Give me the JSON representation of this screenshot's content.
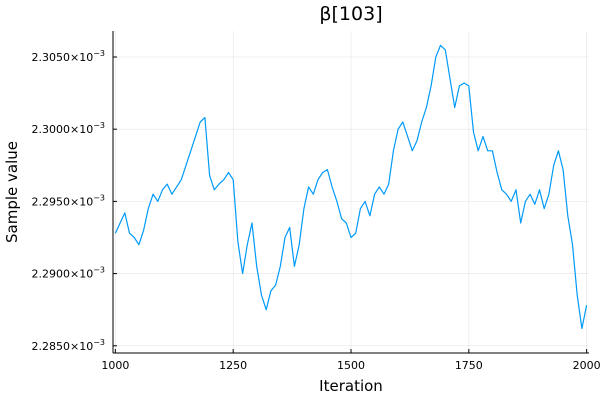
{
  "chart_data": {
    "type": "line",
    "title": "β[103]",
    "xlabel": "Iteration",
    "ylabel": "Sample value",
    "xlim": [
      995,
      2005
    ],
    "ylim": [
      0.0022845,
      0.0023068
    ],
    "grid": true,
    "legend": "none",
    "x_ticks": [
      {
        "value": 1000,
        "label": "1000"
      },
      {
        "value": 1250,
        "label": "1250"
      },
      {
        "value": 1500,
        "label": "1500"
      },
      {
        "value": 1750,
        "label": "1750"
      },
      {
        "value": 2000,
        "label": "2000"
      }
    ],
    "y_ticks": [
      {
        "value": 0.002285,
        "mantissa": "2.2850×10",
        "exponent": "−3"
      },
      {
        "value": 0.00229,
        "mantissa": "2.2900×10",
        "exponent": "−3"
      },
      {
        "value": 0.002295,
        "mantissa": "2.2950×10",
        "exponent": "−3"
      },
      {
        "value": 0.0023,
        "mantissa": "2.3000×10",
        "exponent": "−3"
      },
      {
        "value": 0.002305,
        "mantissa": "2.3050×10",
        "exponent": "−3"
      }
    ],
    "series": [
      {
        "color": "#009AF9",
        "x": [
          1000,
          1010,
          1020,
          1030,
          1040,
          1050,
          1060,
          1070,
          1080,
          1090,
          1100,
          1110,
          1120,
          1130,
          1140,
          1150,
          1160,
          1170,
          1180,
          1190,
          1200,
          1210,
          1220,
          1230,
          1240,
          1250,
          1260,
          1270,
          1280,
          1290,
          1300,
          1310,
          1320,
          1330,
          1340,
          1350,
          1360,
          1370,
          1380,
          1390,
          1400,
          1410,
          1420,
          1430,
          1440,
          1450,
          1460,
          1470,
          1480,
          1490,
          1500,
          1510,
          1520,
          1530,
          1540,
          1550,
          1560,
          1570,
          1580,
          1590,
          1600,
          1610,
          1620,
          1630,
          1640,
          1650,
          1660,
          1670,
          1680,
          1690,
          1700,
          1710,
          1720,
          1730,
          1740,
          1750,
          1760,
          1770,
          1780,
          1790,
          1800,
          1810,
          1820,
          1830,
          1840,
          1850,
          1860,
          1870,
          1880,
          1890,
          1900,
          1910,
          1920,
          1930,
          1940,
          1950,
          1960,
          1970,
          1980,
          1990,
          2000
        ],
        "y": [
          0.0022928,
          0.0022935,
          0.0022942,
          0.0022928,
          0.0022925,
          0.002292,
          0.002293,
          0.0022945,
          0.0022955,
          0.002295,
          0.0022958,
          0.0022962,
          0.0022955,
          0.002296,
          0.0022965,
          0.0022975,
          0.0022985,
          0.0022995,
          0.0023005,
          0.0023008,
          0.0022968,
          0.0022958,
          0.0022962,
          0.0022965,
          0.002297,
          0.0022965,
          0.0022922,
          0.00229,
          0.002292,
          0.0022935,
          0.0022905,
          0.0022885,
          0.0022875,
          0.0022888,
          0.0022892,
          0.0022905,
          0.0022925,
          0.0022932,
          0.0022905,
          0.002292,
          0.0022945,
          0.002296,
          0.0022955,
          0.0022965,
          0.002297,
          0.0022972,
          0.002296,
          0.002295,
          0.0022938,
          0.0022935,
          0.0022925,
          0.0022928,
          0.0022945,
          0.002295,
          0.002294,
          0.0022955,
          0.002296,
          0.0022955,
          0.0022962,
          0.0022985,
          0.0023,
          0.0023005,
          0.0022995,
          0.0022985,
          0.0022992,
          0.0023005,
          0.0023015,
          0.002303,
          0.002305,
          0.0023058,
          0.0023055,
          0.0023035,
          0.0023015,
          0.002303,
          0.0023032,
          0.002303,
          0.0022998,
          0.0022985,
          0.0022995,
          0.0022985,
          0.0022985,
          0.002297,
          0.0022958,
          0.0022955,
          0.002295,
          0.0022958,
          0.0022935,
          0.002295,
          0.0022955,
          0.0022948,
          0.0022958,
          0.0022945,
          0.0022955,
          0.0022975,
          0.0022985,
          0.0022972,
          0.002294,
          0.002292,
          0.0022885,
          0.0022862,
          0.0022878
        ]
      }
    ]
  }
}
